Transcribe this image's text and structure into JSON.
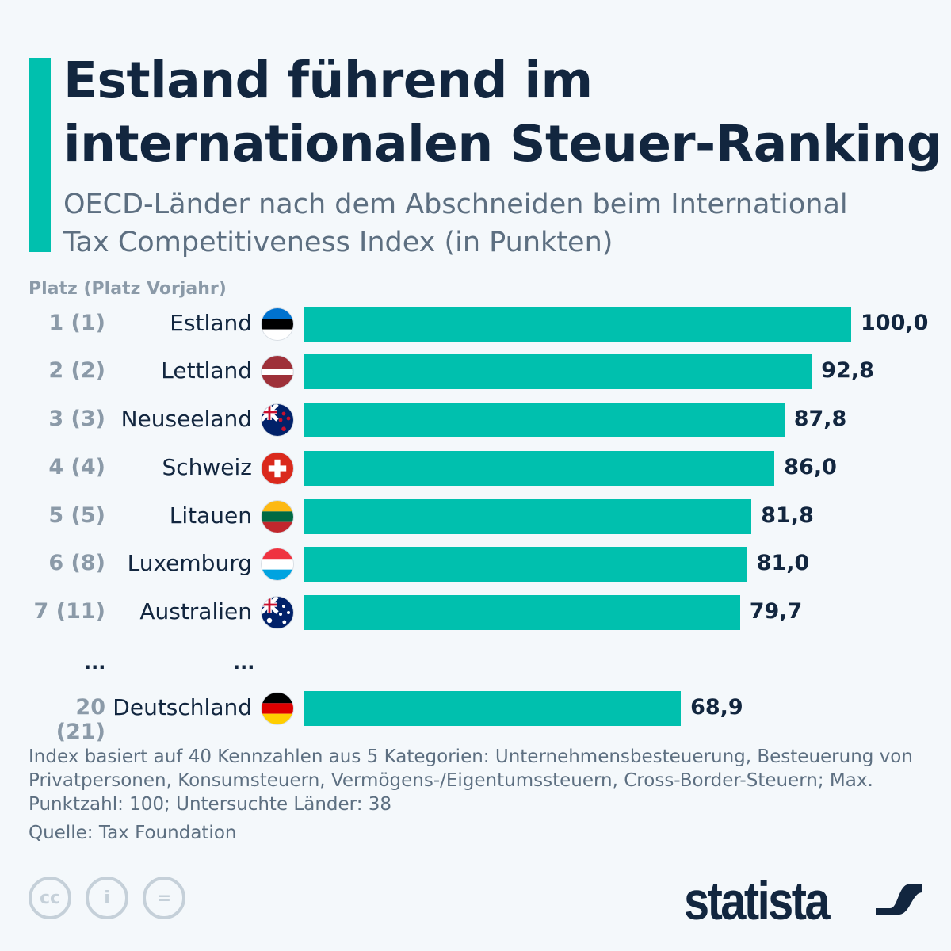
{
  "title": "Estland führend im internationalen Steuer-Ranking",
  "subtitle": "OECD-Länder nach dem Abschneiden beim International Tax Competitiveness Index (in Punkten)",
  "column_header": "Platz (Platz Vorjahr)",
  "ellipsis": "...",
  "note": "Index basiert auf 40 Kennzahlen aus 5 Kategorien: Unternehmensbesteuerung, Besteuerung von Privatpersonen, Konsumsteuern, Vermögens-/Eigentumssteuern, Cross-Border-Steuern; Max. Punktzahl: 100; Untersuchte Länder: 38",
  "source": "Quelle: Tax Foundation",
  "brand": "statista",
  "colors": {
    "bar": "#00c0ae",
    "text": "#12263f"
  },
  "chart_data": {
    "type": "bar",
    "orientation": "horizontal",
    "xlim": [
      0,
      100
    ],
    "categories": [
      "Estland",
      "Lettland",
      "Neuseeland",
      "Schweiz",
      "Litauen",
      "Luxemburg",
      "Australien",
      "Deutschland"
    ],
    "ranks": [
      "1 (1)",
      "2 (2)",
      "3 (3)",
      "4 (4)",
      "5 (5)",
      "6 (8)",
      "7 (11)",
      "20 (21)"
    ],
    "values": [
      100.0,
      92.8,
      87.8,
      86.0,
      81.8,
      81.0,
      79.7,
      68.9
    ],
    "value_labels": [
      "100,0",
      "92,8",
      "87,8",
      "86,0",
      "81,8",
      "81,0",
      "79,7",
      "68,9"
    ],
    "flags": [
      "estonia",
      "latvia",
      "new-zealand",
      "switzerland",
      "lithuania",
      "luxembourg",
      "australia",
      "germany"
    ]
  }
}
